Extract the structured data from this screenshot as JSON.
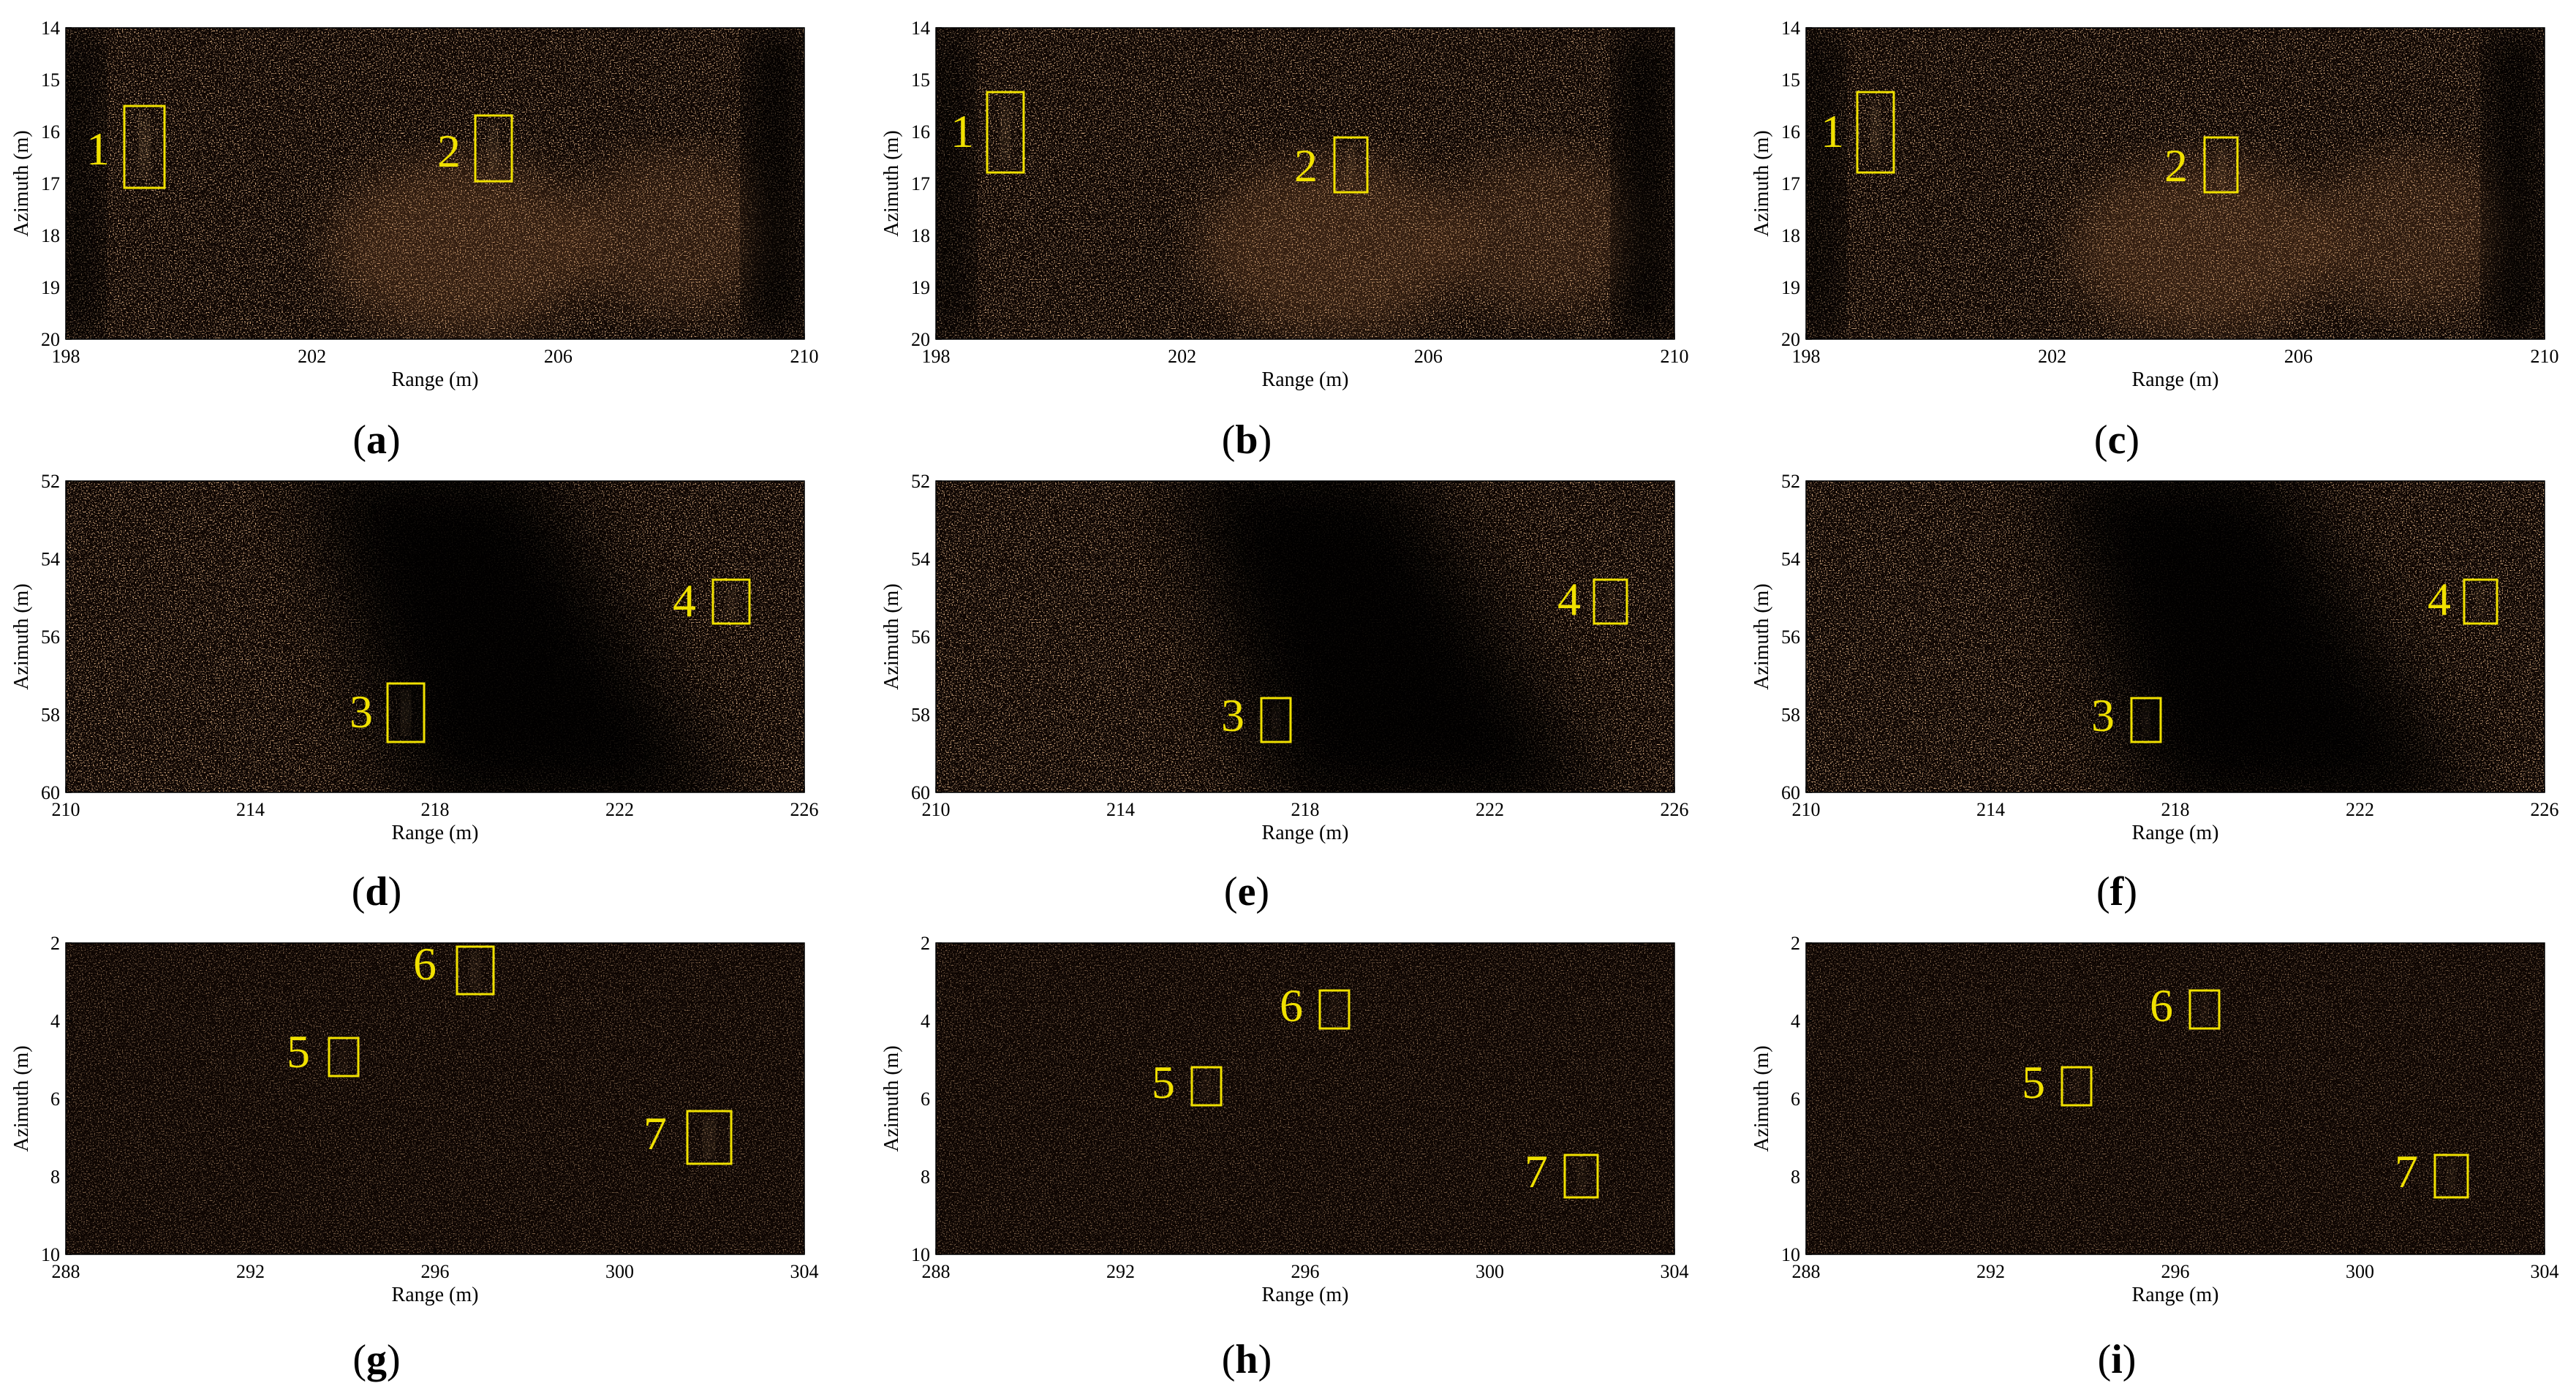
{
  "figure": {
    "axis_labels": {
      "x": "Range (m)",
      "y": "Azimuth (m)"
    },
    "colors": {
      "background": "#ffffff",
      "image_dark": "#0d0502",
      "speckle": "#d88a50",
      "highlight": "#ffd090",
      "box": "#f0e000",
      "number": "#f0e000",
      "axis": "#000000"
    },
    "rows": [
      {
        "xlim": [
          198,
          210
        ],
        "xticks": [
          "198",
          "202",
          "206",
          "210"
        ],
        "ylim": [
          14,
          20
        ],
        "yticks": [
          "14",
          "15",
          "16",
          "17",
          "18",
          "19",
          "20"
        ],
        "panels": [
          {
            "label": "(a)",
            "label_letter": "a",
            "targets": [
              {
                "num": "1"
              },
              {
                "num": "2"
              }
            ]
          },
          {
            "label": "(b)",
            "label_letter": "b",
            "targets": [
              {
                "num": "1"
              },
              {
                "num": "2"
              }
            ]
          },
          {
            "label": "(c)",
            "label_letter": "c",
            "targets": [
              {
                "num": "1"
              },
              {
                "num": "2"
              }
            ]
          }
        ]
      },
      {
        "xlim": [
          210,
          226
        ],
        "xticks": [
          "210",
          "214",
          "218",
          "222",
          "226"
        ],
        "ylim": [
          52,
          60
        ],
        "yticks": [
          "52",
          "54",
          "56",
          "58",
          "60"
        ],
        "panels": [
          {
            "label": "(d)",
            "label_letter": "d",
            "targets": [
              {
                "num": "3"
              },
              {
                "num": "4"
              }
            ]
          },
          {
            "label": "(e)",
            "label_letter": "e",
            "targets": [
              {
                "num": "3"
              },
              {
                "num": "4"
              }
            ]
          },
          {
            "label": "(f)",
            "label_letter": "f",
            "targets": [
              {
                "num": "3"
              },
              {
                "num": "4"
              }
            ]
          }
        ]
      },
      {
        "xlim": [
          288,
          304
        ],
        "xticks": [
          "288",
          "292",
          "296",
          "300",
          "304"
        ],
        "ylim": [
          2,
          10
        ],
        "yticks": [
          "2",
          "4",
          "6",
          "8",
          "10"
        ],
        "panels": [
          {
            "label": "(g)",
            "label_letter": "g",
            "targets": [
              {
                "num": "5"
              },
              {
                "num": "6"
              },
              {
                "num": "7"
              }
            ]
          },
          {
            "label": "(h)",
            "label_letter": "h",
            "targets": [
              {
                "num": "5"
              },
              {
                "num": "6"
              },
              {
                "num": "7"
              }
            ]
          },
          {
            "label": "(i)",
            "label_letter": "i",
            "targets": [
              {
                "num": "5"
              },
              {
                "num": "6"
              },
              {
                "num": "7"
              }
            ]
          }
        ]
      }
    ]
  }
}
